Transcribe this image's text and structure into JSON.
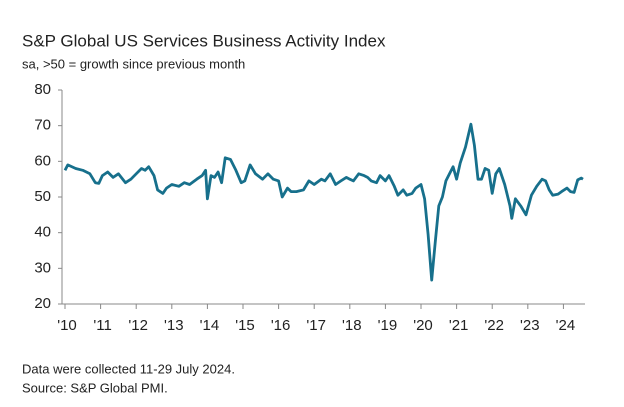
{
  "chart_data": {
    "type": "line",
    "title": "S&P Global US Services Business Activity Index",
    "subtitle": "sa, >50 = growth since previous month",
    "notes": [
      "Data were collected 11-29 July 2024.",
      "Source: S&P Global PMI."
    ],
    "x": [
      2010.0,
      2010.08,
      2010.3,
      2010.5,
      2010.7,
      2010.85,
      2010.95,
      2011.05,
      2011.2,
      2011.35,
      2011.5,
      2011.7,
      2011.85,
      2012.0,
      2012.15,
      2012.25,
      2012.35,
      2012.5,
      2012.6,
      2012.75,
      2012.85,
      2013.0,
      2013.2,
      2013.35,
      2013.5,
      2013.7,
      2013.85,
      2013.95,
      2014.0,
      2014.1,
      2014.2,
      2014.3,
      2014.4,
      2014.5,
      2014.65,
      2014.8,
      2014.95,
      2015.05,
      2015.2,
      2015.35,
      2015.55,
      2015.7,
      2015.85,
      2016.0,
      2016.1,
      2016.25,
      2016.35,
      2016.5,
      2016.7,
      2016.85,
      2017.0,
      2017.2,
      2017.3,
      2017.45,
      2017.6,
      2017.75,
      2017.9,
      2018.0,
      2018.1,
      2018.25,
      2018.4,
      2018.5,
      2018.6,
      2018.75,
      2018.85,
      2019.0,
      2019.1,
      2019.25,
      2019.35,
      2019.5,
      2019.6,
      2019.75,
      2019.85,
      2020.0,
      2020.1,
      2020.2,
      2020.3,
      2020.4,
      2020.5,
      2020.6,
      2020.7,
      2020.8,
      2020.9,
      2021.0,
      2021.1,
      2021.25,
      2021.4,
      2021.5,
      2021.6,
      2021.7,
      2021.8,
      2021.9,
      2022.0,
      2022.1,
      2022.2,
      2022.35,
      2022.5,
      2022.55,
      2022.65,
      2022.8,
      2022.95,
      2023.1,
      2023.25,
      2023.4,
      2023.5,
      2023.6,
      2023.7,
      2023.85,
      2023.95,
      2024.1,
      2024.2,
      2024.3,
      2024.4,
      2024.5,
      2024.55
    ],
    "series": [
      {
        "name": "Business Activity Index",
        "color": "#17708c",
        "values": [
          57.5,
          59,
          58,
          57.5,
          56.5,
          54,
          53.8,
          56,
          57,
          55.5,
          56.5,
          54,
          55,
          56.5,
          58,
          57.5,
          58.5,
          56,
          52,
          51,
          52.5,
          53.5,
          53,
          54,
          53.5,
          55,
          56,
          57.5,
          49.5,
          56,
          55.5,
          57,
          54,
          61,
          60.5,
          57.5,
          54,
          54.5,
          59,
          56.5,
          55,
          56.5,
          55,
          54.5,
          50,
          52.5,
          51.5,
          51.5,
          52,
          54.5,
          53.5,
          55,
          54.5,
          56.5,
          53.5,
          54.5,
          55.5,
          55,
          54.5,
          56.5,
          56,
          55.5,
          54.5,
          54,
          56,
          54.5,
          56,
          53,
          50.5,
          52,
          50.5,
          51,
          52.5,
          53.5,
          49.5,
          39.5,
          26.7,
          37.5,
          47.5,
          50,
          54.5,
          56.5,
          58.5,
          55,
          59.5,
          64,
          70.4,
          64.5,
          55,
          55,
          58,
          57.5,
          51,
          56.5,
          58,
          53.5,
          47.5,
          44,
          49.5,
          47.5,
          45,
          50.5,
          53,
          55,
          54.5,
          52,
          50.5,
          50.8,
          51.5,
          52.5,
          51.5,
          51.3,
          54.8,
          55.3,
          55
        ]
      }
    ],
    "xlim": [
      2010,
      2024.55
    ],
    "xticks": [
      {
        "value": 2010,
        "label": "'10"
      },
      {
        "value": 2011,
        "label": "'11"
      },
      {
        "value": 2012,
        "label": "'12"
      },
      {
        "value": 2013,
        "label": "'13"
      },
      {
        "value": 2014,
        "label": "'14"
      },
      {
        "value": 2015,
        "label": "'15"
      },
      {
        "value": 2016,
        "label": "'16"
      },
      {
        "value": 2017,
        "label": "'17"
      },
      {
        "value": 2018,
        "label": "'18"
      },
      {
        "value": 2019,
        "label": "'19"
      },
      {
        "value": 2020,
        "label": "'20"
      },
      {
        "value": 2021,
        "label": "'21"
      },
      {
        "value": 2022,
        "label": "'22"
      },
      {
        "value": 2023,
        "label": "'23"
      },
      {
        "value": 2024,
        "label": "'24"
      }
    ],
    "ylim": [
      20,
      80
    ],
    "yticks": [
      20,
      30,
      40,
      50,
      60,
      70,
      80
    ],
    "grid": false
  }
}
